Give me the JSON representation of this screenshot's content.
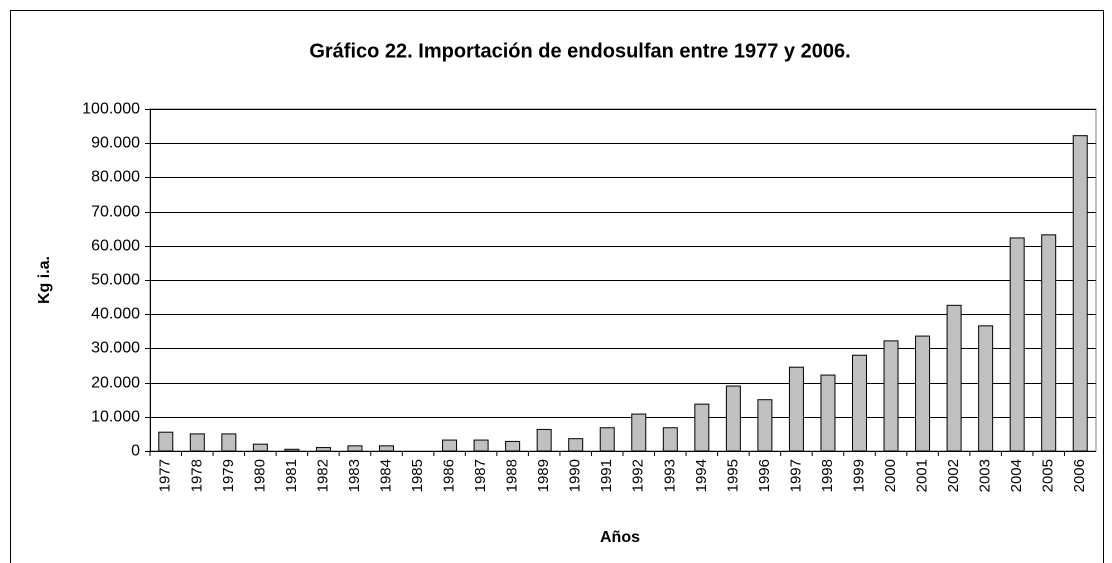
{
  "chart_data": {
    "type": "bar",
    "title": "Gráfico 22. Importación de endosulfan entre 1977 y 2006.",
    "x_label": "Años",
    "y_label": "Kg i.a.",
    "categories": [
      "1977",
      "1978",
      "1979",
      "1980",
      "1981",
      "1982",
      "1983",
      "1984",
      "1985",
      "1986",
      "1987",
      "1988",
      "1989",
      "1990",
      "1991",
      "1992",
      "1993",
      "1994",
      "1995",
      "1996",
      "1997",
      "1998",
      "1999",
      "2000",
      "2001",
      "2002",
      "2003",
      "2004",
      "2005",
      "2006"
    ],
    "values": [
      5500,
      5000,
      5000,
      2000,
      500,
      1000,
      1500,
      1500,
      0,
      3200,
      3200,
      2800,
      6300,
      3600,
      6800,
      10800,
      6800,
      13700,
      19000,
      15000,
      24500,
      22200,
      28000,
      32200,
      33600,
      42600,
      36600,
      62300,
      63200,
      92200
    ],
    "color": "#c0c0c0",
    "ylim": [
      0,
      100000
    ],
    "yticks": [
      0,
      {
        "value": 10000,
        "label": "10.000"
      },
      {
        "value": 20000,
        "label": "20.000"
      },
      {
        "value": 30000,
        "label": "30.000"
      },
      {
        "value": 40000,
        "label": "40.000"
      },
      {
        "value": 50000,
        "label": "50.000"
      },
      {
        "value": 60000,
        "label": "60.000"
      },
      {
        "value": 70000,
        "label": "70.000"
      },
      {
        "value": 80000,
        "label": "80.000"
      },
      {
        "value": 90000,
        "label": "90.000"
      },
      {
        "value": 100000,
        "label": "100.000"
      }
    ],
    "grid": true
  }
}
